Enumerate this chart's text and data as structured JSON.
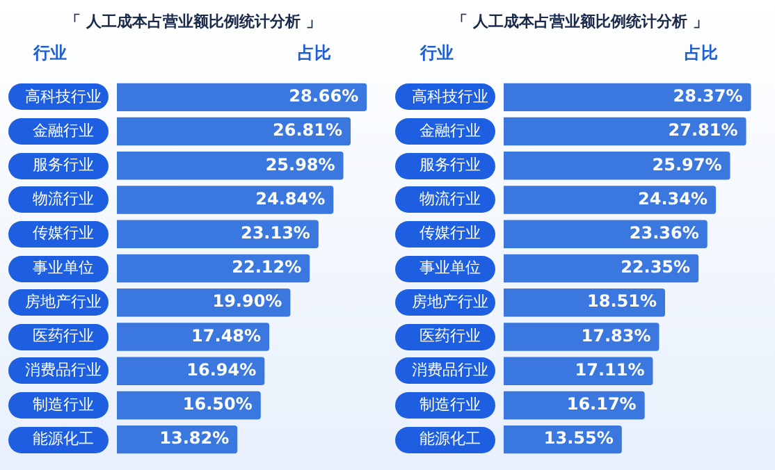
{
  "chart_data": [
    {
      "type": "bar",
      "orientation": "horizontal",
      "title": "「 人工成本占营业额比例统计分析 」",
      "ylabel": "行业",
      "xlabel": "占比",
      "categories": [
        "高科技行业",
        "金融行业",
        "服务行业",
        "物流行业",
        "传媒行业",
        "事业单位",
        "房地产行业",
        "医药行业",
        "消费品行业",
        "制造行业",
        "能源化工"
      ],
      "values": [
        28.66,
        26.81,
        25.98,
        24.84,
        23.13,
        22.12,
        19.9,
        17.48,
        16.94,
        16.5,
        13.82
      ],
      "value_labels": [
        "28.66%",
        "26.81%",
        "25.98%",
        "24.84%",
        "23.13%",
        "22.12%",
        "19.90%",
        "17.48%",
        "16.94%",
        "16.50%",
        "13.82%"
      ],
      "color": "#3a78e0",
      "tick_labels": "y"
    },
    {
      "type": "bar",
      "orientation": "horizontal",
      "title": "「 人工成本占营业额比例统计分析 」",
      "ylabel": "行业",
      "xlabel": "占比",
      "categories": [
        "高科技行业",
        "金融行业",
        "服务行业",
        "物流行业",
        "传媒行业",
        "事业单位",
        "房地产行业",
        "医药行业",
        "消费品行业",
        "制造行业",
        "能源化工"
      ],
      "values": [
        28.37,
        27.81,
        25.97,
        24.34,
        23.36,
        22.35,
        18.51,
        17.83,
        17.11,
        16.17,
        13.55
      ],
      "value_labels": [
        "28.37%",
        "27.81%",
        "25.97%",
        "24.34%",
        "23.36%",
        "22.35%",
        "18.51%",
        "17.83%",
        "17.11%",
        "16.17%",
        "13.55%"
      ],
      "color": "#3a78e0",
      "tick_labels": "y"
    }
  ]
}
